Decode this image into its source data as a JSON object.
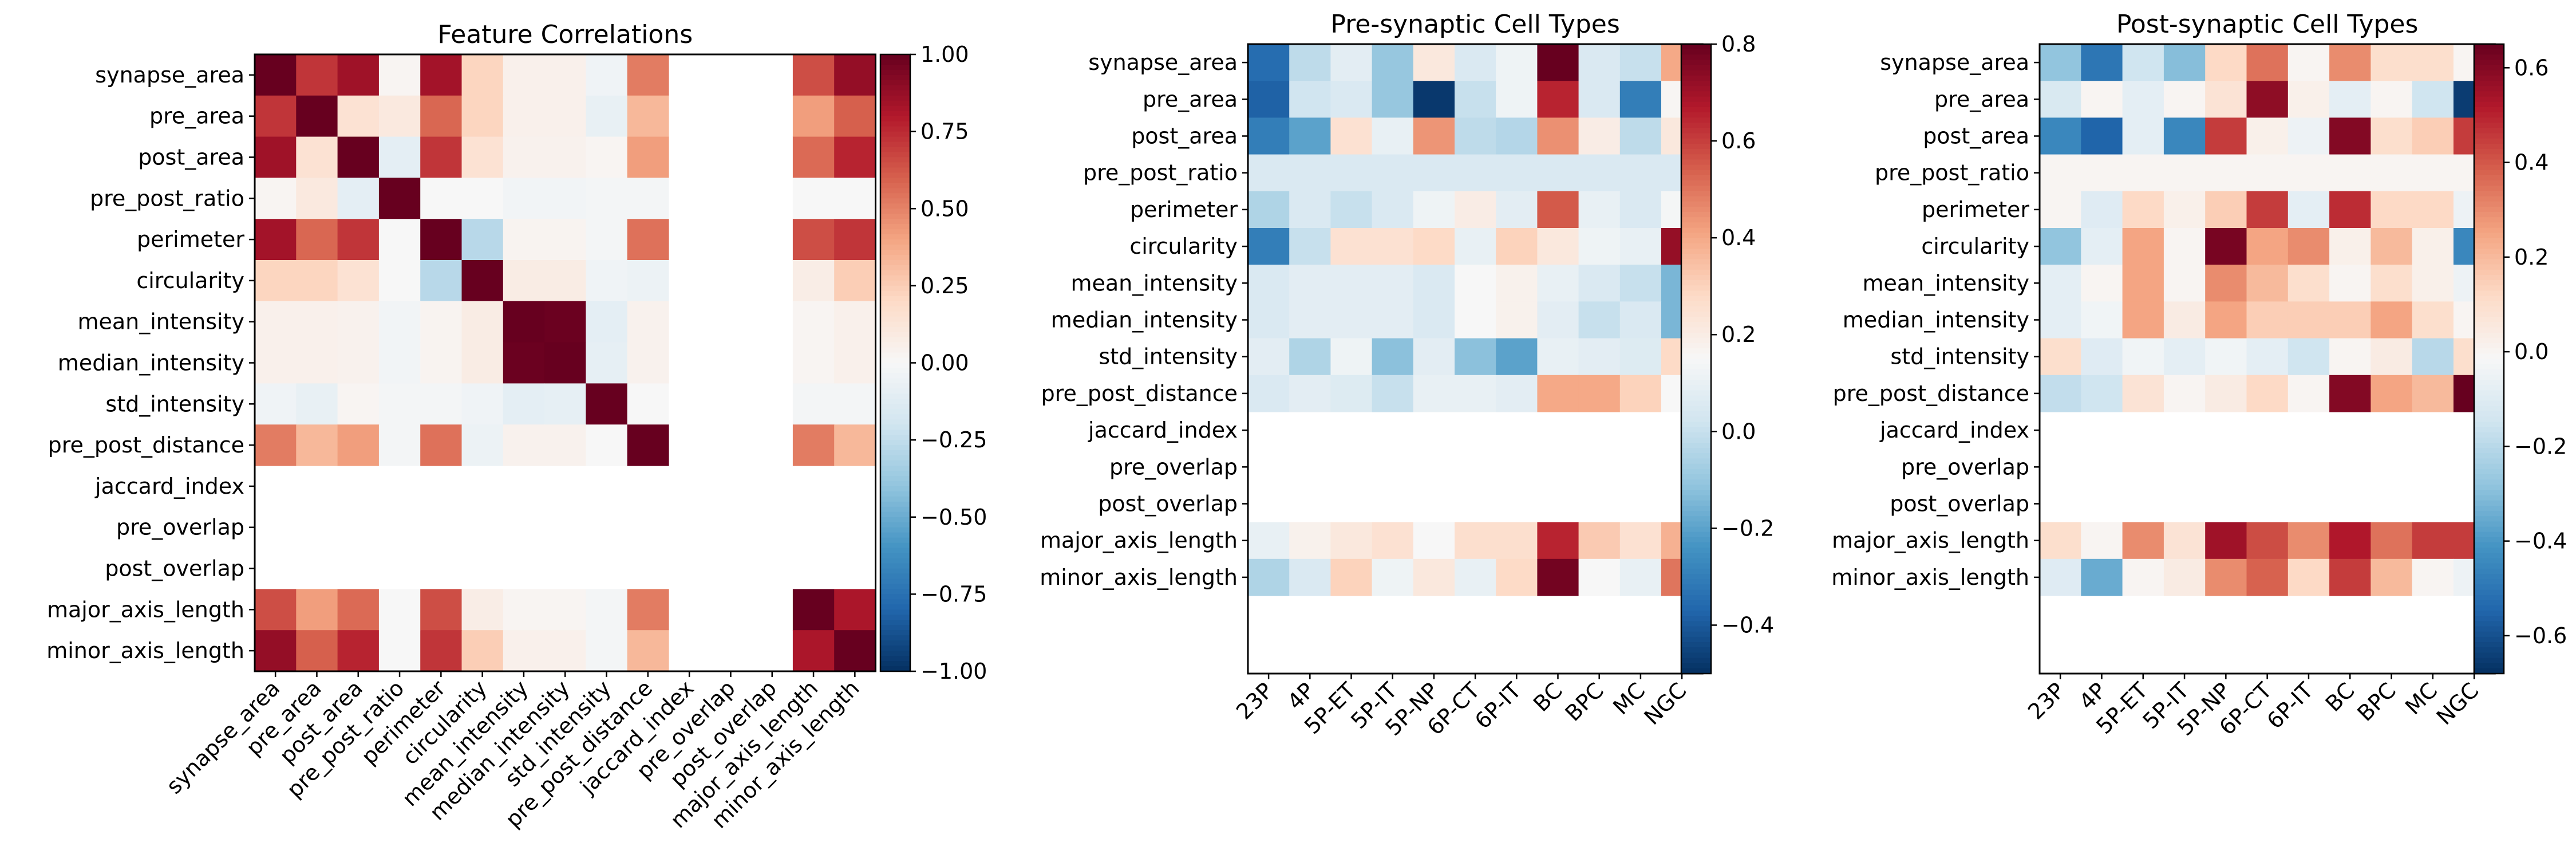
{
  "chart_data": [
    {
      "type": "heatmap",
      "title": "Feature Correlations",
      "rows": [
        "synapse_area",
        "pre_area",
        "post_area",
        "pre_post_ratio",
        "perimeter",
        "circularity",
        "mean_intensity",
        "median_intensity",
        "std_intensity",
        "pre_post_distance",
        "jaccard_index",
        "pre_overlap",
        "post_overlap",
        "major_axis_length",
        "minor_axis_length"
      ],
      "cols": [
        "synapse_area",
        "pre_area",
        "post_area",
        "pre_post_ratio",
        "perimeter",
        "circularity",
        "mean_intensity",
        "median_intensity",
        "std_intensity",
        "pre_post_distance",
        "jaccard_index",
        "pre_overlap",
        "post_overlap",
        "major_axis_length",
        "minor_axis_length"
      ],
      "values": [
        [
          1.0,
          0.72,
          0.85,
          0.02,
          0.84,
          0.22,
          0.05,
          0.05,
          -0.04,
          0.52,
          null,
          null,
          null,
          0.65,
          0.88
        ],
        [
          0.72,
          1.0,
          0.15,
          0.1,
          0.58,
          0.22,
          0.05,
          0.05,
          -0.08,
          0.33,
          null,
          null,
          null,
          0.42,
          0.6
        ],
        [
          0.85,
          0.15,
          1.0,
          -0.1,
          0.72,
          0.15,
          0.04,
          0.04,
          0.02,
          0.42,
          null,
          null,
          null,
          0.57,
          0.77
        ],
        [
          0.02,
          0.1,
          -0.1,
          1.0,
          0.0,
          0.0,
          -0.03,
          -0.03,
          -0.02,
          -0.02,
          null,
          null,
          null,
          0.0,
          0.0
        ],
        [
          0.84,
          0.58,
          0.72,
          0.0,
          1.0,
          -0.28,
          0.03,
          0.03,
          -0.02,
          0.55,
          null,
          null,
          null,
          0.65,
          0.72
        ],
        [
          0.22,
          0.22,
          0.15,
          0.0,
          -0.28,
          1.0,
          0.08,
          0.08,
          -0.04,
          -0.06,
          null,
          null,
          null,
          0.07,
          0.25
        ],
        [
          0.05,
          0.05,
          0.04,
          -0.03,
          0.03,
          0.08,
          1.0,
          0.99,
          -0.1,
          0.04,
          null,
          null,
          null,
          0.02,
          0.05
        ],
        [
          0.05,
          0.05,
          0.04,
          -0.03,
          0.03,
          0.08,
          0.99,
          1.0,
          -0.09,
          0.04,
          null,
          null,
          null,
          0.02,
          0.05
        ],
        [
          -0.04,
          -0.08,
          0.02,
          -0.02,
          -0.02,
          -0.04,
          -0.1,
          -0.09,
          1.0,
          0.0,
          null,
          null,
          null,
          -0.02,
          -0.02
        ],
        [
          0.52,
          0.33,
          0.42,
          -0.02,
          0.55,
          -0.06,
          0.04,
          0.04,
          0.0,
          1.0,
          null,
          null,
          null,
          0.52,
          0.33
        ],
        [
          null,
          null,
          null,
          null,
          null,
          null,
          null,
          null,
          null,
          null,
          null,
          null,
          null,
          null,
          null
        ],
        [
          null,
          null,
          null,
          null,
          null,
          null,
          null,
          null,
          null,
          null,
          null,
          null,
          null,
          null,
          null
        ],
        [
          null,
          null,
          null,
          null,
          null,
          null,
          null,
          null,
          null,
          null,
          null,
          null,
          null,
          null,
          null
        ],
        [
          0.65,
          0.42,
          0.57,
          0.0,
          0.65,
          0.07,
          0.02,
          0.02,
          -0.02,
          0.52,
          null,
          null,
          null,
          1.0,
          0.82
        ],
        [
          0.88,
          0.6,
          0.77,
          0.0,
          0.72,
          0.25,
          0.05,
          0.05,
          -0.02,
          0.33,
          null,
          null,
          null,
          0.82,
          1.0
        ]
      ],
      "vmin": -1.0,
      "vmax": 1.0,
      "colormap": "RdBu_r",
      "colorbar_ticks": [
        "1.00",
        "0.75",
        "0.50",
        "0.25",
        "0.00",
        "−0.25",
        "−0.50",
        "−0.75",
        "−1.00"
      ],
      "colorbar_tick_values": [
        1.0,
        0.75,
        0.5,
        0.25,
        0.0,
        -0.25,
        -0.5,
        -0.75,
        -1.0
      ]
    },
    {
      "type": "heatmap",
      "title": "Pre-synaptic Cell Types",
      "rows": [
        "synapse_area",
        "pre_area",
        "post_area",
        "pre_post_ratio",
        "perimeter",
        "circularity",
        "mean_intensity",
        "median_intensity",
        "std_intensity",
        "pre_post_distance",
        "jaccard_index",
        "pre_overlap",
        "post_overlap",
        "major_axis_length",
        "minor_axis_length"
      ],
      "cols": [
        "23P",
        "4P",
        "5P-ET",
        "5P-IT",
        "5P-NP",
        "6P-CT",
        "6P-IT",
        "BC",
        "BPC",
        "MC",
        "NGC"
      ],
      "values": [
        [
          -0.35,
          -0.02,
          0.08,
          -0.1,
          0.22,
          0.05,
          0.12,
          0.8,
          0.05,
          0.0,
          0.4
        ],
        [
          -0.38,
          0.02,
          0.05,
          -0.1,
          -0.48,
          0.0,
          0.12,
          0.65,
          0.05,
          -0.3,
          0.16
        ],
        [
          -0.3,
          -0.2,
          0.25,
          0.1,
          0.44,
          -0.02,
          -0.04,
          0.45,
          0.2,
          -0.02,
          0.22
        ],
        [
          0.05,
          0.05,
          0.05,
          0.05,
          0.05,
          0.05,
          0.05,
          0.05,
          0.05,
          0.05,
          0.05
        ],
        [
          -0.05,
          0.05,
          0.0,
          0.05,
          0.12,
          0.2,
          0.08,
          0.55,
          0.1,
          0.05,
          0.14
        ],
        [
          -0.3,
          0.0,
          0.25,
          0.25,
          0.28,
          0.1,
          0.3,
          0.22,
          0.12,
          0.1,
          0.72
        ],
        [
          0.05,
          0.08,
          0.08,
          0.08,
          0.05,
          0.15,
          0.18,
          0.1,
          0.05,
          0.0,
          -0.15
        ],
        [
          0.05,
          0.08,
          0.08,
          0.08,
          0.05,
          0.15,
          0.18,
          0.08,
          0.0,
          0.05,
          -0.15
        ],
        [
          0.08,
          -0.05,
          0.12,
          -0.12,
          0.08,
          -0.12,
          -0.2,
          0.1,
          0.08,
          0.06,
          0.28
        ],
        [
          0.05,
          0.08,
          0.06,
          0.0,
          0.1,
          0.1,
          0.08,
          0.4,
          0.4,
          0.3,
          0.15
        ],
        [
          null,
          null,
          null,
          null,
          null,
          null,
          null,
          null,
          null,
          null,
          null
        ],
        [
          null,
          null,
          null,
          null,
          null,
          null,
          null,
          null,
          null,
          null,
          null
        ],
        [
          null,
          null,
          null,
          null,
          null,
          null,
          null,
          null,
          null,
          null,
          null
        ],
        [
          0.1,
          0.18,
          0.22,
          0.25,
          0.15,
          0.26,
          0.26,
          0.65,
          0.32,
          0.25,
          0.38
        ],
        [
          -0.05,
          0.05,
          0.3,
          0.12,
          0.22,
          0.1,
          0.28,
          0.78,
          0.15,
          0.1,
          0.5
        ]
      ],
      "vmin": -0.5,
      "vmax": 0.8,
      "colormap": "RdBu_r",
      "colorbar_ticks": [
        "0.8",
        "0.6",
        "0.4",
        "0.2",
        "0.0",
        "−0.2",
        "−0.4"
      ],
      "colorbar_tick_values": [
        0.8,
        0.6,
        0.4,
        0.2,
        0.0,
        -0.2,
        -0.4
      ]
    },
    {
      "type": "heatmap",
      "title": "Post-synaptic Cell Types",
      "rows": [
        "synapse_area",
        "pre_area",
        "post_area",
        "pre_post_ratio",
        "perimeter",
        "circularity",
        "mean_intensity",
        "median_intensity",
        "std_intensity",
        "pre_post_distance",
        "jaccard_index",
        "pre_overlap",
        "post_overlap",
        "major_axis_length",
        "minor_axis_length"
      ],
      "cols": [
        "23P",
        "4P",
        "5P-ET",
        "5P-IT",
        "5P-NP",
        "6P-CT",
        "6P-IT",
        "BC",
        "BPC",
        "MC",
        "NGC"
      ],
      "values": [
        [
          -0.28,
          -0.5,
          -0.15,
          -0.3,
          0.12,
          0.35,
          0.0,
          0.3,
          0.1,
          0.1,
          0.0
        ],
        [
          -0.12,
          0.0,
          -0.08,
          0.0,
          0.08,
          0.58,
          0.02,
          -0.08,
          0.0,
          -0.15,
          -0.65
        ],
        [
          -0.45,
          -0.55,
          -0.08,
          -0.45,
          0.45,
          0.02,
          -0.05,
          0.6,
          0.1,
          0.15,
          0.45
        ],
        [
          0.0,
          0.0,
          0.0,
          0.0,
          0.0,
          0.0,
          0.0,
          0.0,
          0.0,
          0.0,
          0.0
        ],
        [
          0.0,
          -0.1,
          0.12,
          0.02,
          0.15,
          0.45,
          -0.08,
          0.48,
          0.12,
          0.12,
          -0.05
        ],
        [
          -0.28,
          -0.08,
          0.25,
          0.0,
          0.62,
          0.25,
          0.3,
          0.02,
          0.2,
          0.02,
          -0.45
        ],
        [
          -0.08,
          0.0,
          0.25,
          0.0,
          0.3,
          0.2,
          0.1,
          0.0,
          0.1,
          0.02,
          -0.05
        ],
        [
          -0.08,
          -0.04,
          0.25,
          0.04,
          0.25,
          0.15,
          0.15,
          0.15,
          0.25,
          0.1,
          0.0
        ],
        [
          0.1,
          -0.1,
          -0.04,
          -0.08,
          -0.04,
          -0.08,
          -0.15,
          0.0,
          0.04,
          -0.2,
          0.1
        ],
        [
          -0.18,
          -0.15,
          0.08,
          0.0,
          0.04,
          0.12,
          0.0,
          0.6,
          0.25,
          0.2,
          0.65
        ],
        [
          null,
          null,
          null,
          null,
          null,
          null,
          null,
          null,
          null,
          null,
          null
        ],
        [
          null,
          null,
          null,
          null,
          null,
          null,
          null,
          null,
          null,
          null,
          null
        ],
        [
          null,
          null,
          null,
          null,
          null,
          null,
          null,
          null,
          null,
          null,
          null
        ],
        [
          0.1,
          0.0,
          0.3,
          0.08,
          0.55,
          0.42,
          0.3,
          0.52,
          0.35,
          0.45,
          0.45
        ],
        [
          -0.1,
          -0.35,
          0.0,
          0.04,
          0.3,
          0.38,
          0.12,
          0.45,
          0.2,
          0.0,
          -0.05
        ]
      ],
      "vmin": -0.68,
      "vmax": 0.65,
      "colormap": "RdBu_r",
      "colorbar_ticks": [
        "0.6",
        "0.4",
        "0.2",
        "0.0",
        "−0.2",
        "−0.4",
        "−0.6"
      ],
      "colorbar_tick_values": [
        0.6,
        0.4,
        0.2,
        0.0,
        -0.2,
        -0.4,
        -0.6
      ]
    }
  ]
}
